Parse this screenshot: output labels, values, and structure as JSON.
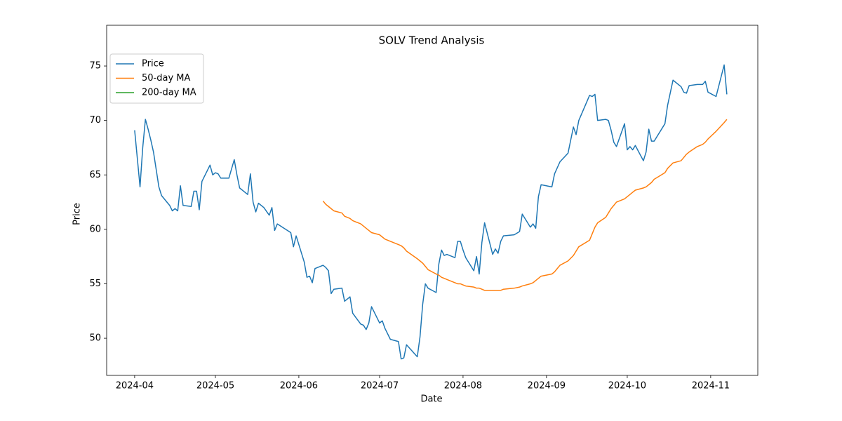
{
  "chart_data": {
    "type": "line",
    "title": "SOLV Trend Analysis",
    "x_label": "Date",
    "y_label": "Price",
    "legend": "upper left",
    "grid": false,
    "xlim": [
      19803.6,
      20045.5
    ],
    "xticks": [
      {
        "value": 19814,
        "label": "2024-04"
      },
      {
        "value": 19844,
        "label": "2024-05"
      },
      {
        "value": 19875,
        "label": "2024-06"
      },
      {
        "value": 19905,
        "label": "2024-07"
      },
      {
        "value": 19936,
        "label": "2024-08"
      },
      {
        "value": 19967,
        "label": "2024-09"
      },
      {
        "value": 19997,
        "label": "2024-10"
      },
      {
        "value": 20028,
        "label": "2024-11"
      }
    ],
    "ylim": [
      46.59,
      78.74
    ],
    "yticks": [
      50,
      55,
      60,
      65,
      70,
      75
    ],
    "x": [
      19814,
      19816,
      19817,
      19818,
      19819,
      19820,
      19821,
      19822,
      19823,
      19824,
      19827,
      19828,
      19829,
      19830,
      19831,
      19832,
      19835,
      19836,
      19837,
      19838,
      19839,
      19842,
      19843,
      19844,
      19845,
      19846,
      19849,
      19851,
      19852,
      19853,
      19856,
      19857,
      19858,
      19859,
      19860,
      19862,
      19864,
      19865,
      19866,
      19867,
      19872,
      19873,
      19874,
      19877,
      19878,
      19879,
      19880,
      19881,
      19884,
      19885,
      19886,
      19887,
      19888,
      19891,
      19892,
      19894,
      19895,
      19898,
      19899,
      19900,
      19901,
      19902,
      19905,
      19906,
      19907,
      19909,
      19912,
      19913,
      19914,
      19915,
      19919,
      19920,
      19921,
      19922,
      19923,
      19926,
      19927,
      19928,
      19929,
      19930,
      19933,
      19934,
      19935,
      19936,
      19937,
      19940,
      19941,
      19942,
      19943,
      19944,
      19947,
      19948,
      19949,
      19950,
      19951,
      19955,
      19957,
      19958,
      19961,
      19962,
      19963,
      19964,
      19965,
      19969,
      19970,
      19972,
      19975,
      19977,
      19978,
      19979,
      19983,
      19984,
      19985,
      19986,
      19989,
      19990,
      19991,
      19992,
      19993,
      19996,
      19997,
      19998,
      19999,
      20000,
      20003,
      20004,
      20005,
      20006,
      20007,
      20011,
      20012,
      20014,
      20017,
      20018,
      20019,
      20020,
      20023,
      20025,
      20026,
      20027,
      20030,
      20033,
      20034
    ],
    "series": [
      {
        "name": "Price",
        "color": "#1f77b4",
        "values": [
          69.1,
          63.9,
          67.5,
          70.1,
          69.2,
          68.2,
          67.1,
          65.5,
          63.9,
          63.1,
          62.2,
          61.7,
          61.9,
          61.7,
          64.0,
          62.2,
          62.1,
          63.5,
          63.5,
          61.8,
          64.4,
          65.9,
          65.0,
          65.2,
          65.1,
          64.7,
          64.7,
          66.4,
          65.0,
          63.8,
          63.2,
          65.1,
          62.5,
          61.6,
          62.4,
          62.0,
          61.3,
          62.0,
          59.9,
          60.5,
          59.7,
          58.4,
          59.4,
          57.0,
          55.6,
          55.7,
          55.1,
          56.4,
          56.7,
          56.5,
          56.2,
          54.1,
          54.5,
          54.6,
          53.4,
          53.8,
          52.3,
          51.3,
          51.2,
          50.8,
          51.4,
          52.9,
          51.4,
          51.6,
          50.9,
          49.9,
          49.7,
          48.1,
          48.2,
          49.4,
          48.3,
          50.1,
          53.1,
          55.0,
          54.6,
          54.2,
          56.8,
          58.1,
          57.6,
          57.7,
          57.4,
          58.9,
          58.9,
          58.1,
          57.4,
          56.2,
          57.5,
          55.9,
          58.8,
          60.6,
          57.7,
          58.2,
          57.8,
          58.9,
          59.4,
          59.5,
          59.8,
          61.4,
          60.2,
          60.5,
          60.1,
          63.0,
          64.1,
          63.9,
          65.1,
          66.2,
          67.0,
          69.4,
          68.7,
          70.0,
          72.3,
          72.2,
          72.4,
          70.0,
          70.1,
          70.0,
          69.1,
          68.0,
          67.6,
          69.7,
          67.3,
          67.6,
          67.3,
          67.7,
          66.3,
          67.1,
          69.2,
          68.1,
          68.1,
          69.7,
          71.4,
          73.7,
          73.1,
          72.6,
          72.5,
          73.2,
          73.3,
          73.3,
          73.6,
          72.6,
          72.2,
          75.1,
          72.4
        ]
      },
      {
        "name": "50-day MA",
        "color": "#ff7f0e",
        "values": [
          null,
          null,
          null,
          null,
          null,
          null,
          null,
          null,
          null,
          null,
          null,
          null,
          null,
          null,
          null,
          null,
          null,
          null,
          null,
          null,
          null,
          null,
          null,
          null,
          null,
          null,
          null,
          null,
          null,
          null,
          null,
          null,
          null,
          null,
          null,
          null,
          null,
          null,
          null,
          null,
          null,
          null,
          null,
          null,
          null,
          null,
          null,
          null,
          62.6,
          62.3,
          62.1,
          61.9,
          61.7,
          61.5,
          61.2,
          61.0,
          60.8,
          60.5,
          60.3,
          60.1,
          59.9,
          59.7,
          59.5,
          59.3,
          59.1,
          58.9,
          58.6,
          58.5,
          58.3,
          58.0,
          57.3,
          57.1,
          56.9,
          56.6,
          56.3,
          55.9,
          55.8,
          55.6,
          55.5,
          55.4,
          55.1,
          55.0,
          55.0,
          54.9,
          54.8,
          54.7,
          54.6,
          54.6,
          54.5,
          54.4,
          54.4,
          54.4,
          54.4,
          54.4,
          54.5,
          54.6,
          54.7,
          54.8,
          55.0,
          55.1,
          55.3,
          55.5,
          55.7,
          55.9,
          56.1,
          56.7,
          57.1,
          57.6,
          58.0,
          58.4,
          59.0,
          59.6,
          60.2,
          60.6,
          61.1,
          61.5,
          61.9,
          62.2,
          62.5,
          62.8,
          63.0,
          63.2,
          63.4,
          63.6,
          63.8,
          63.9,
          64.1,
          64.3,
          64.6,
          65.2,
          65.6,
          66.1,
          66.3,
          66.6,
          66.9,
          67.1,
          67.6,
          67.8,
          68.0,
          68.3,
          69.0,
          69.8,
          70.1
        ]
      },
      {
        "name": "200-day MA",
        "color": "#2ca02c",
        "values": [
          null,
          null,
          null,
          null,
          null,
          null,
          null,
          null,
          null,
          null,
          null,
          null,
          null,
          null,
          null,
          null,
          null,
          null,
          null,
          null,
          null,
          null,
          null,
          null,
          null,
          null,
          null,
          null,
          null,
          null,
          null,
          null,
          null,
          null,
          null,
          null,
          null,
          null,
          null,
          null,
          null,
          null,
          null,
          null,
          null,
          null,
          null,
          null,
          null,
          null,
          null,
          null,
          null,
          null,
          null,
          null,
          null,
          null,
          null,
          null,
          null,
          null,
          null,
          null,
          null,
          null,
          null,
          null,
          null,
          null,
          null,
          null,
          null,
          null,
          null,
          null,
          null,
          null,
          null,
          null,
          null,
          null,
          null,
          null,
          null,
          null,
          null,
          null,
          null,
          null,
          null,
          null,
          null,
          null,
          null,
          null,
          null,
          null,
          null,
          null,
          null,
          null,
          null,
          null,
          null,
          null,
          null,
          null,
          null,
          null,
          null,
          null,
          null,
          null,
          null,
          null,
          null,
          null,
          null,
          null,
          null,
          null,
          null,
          null,
          null,
          null,
          null,
          null,
          null,
          null,
          null,
          null,
          null,
          null,
          null,
          null,
          null,
          null,
          null,
          null,
          null,
          null,
          null
        ]
      }
    ]
  }
}
